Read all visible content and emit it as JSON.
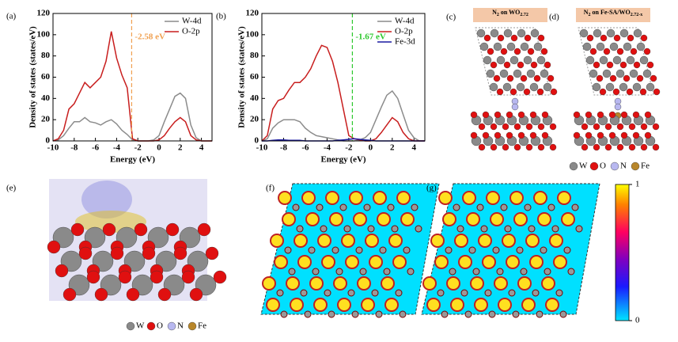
{
  "chart_data": [
    {
      "type": "line",
      "panel_label": "(a)",
      "xlabel": "Energy (eV)",
      "ylabel": "Density of states (states/eV)",
      "x": [
        -10,
        -9.5,
        -9,
        -8.5,
        -8,
        -7.5,
        -7,
        -6.5,
        -6,
        -5.5,
        -5,
        -4.5,
        -4,
        -3.5,
        -3,
        -2.5,
        -2,
        -1.5,
        -1,
        -0.5,
        0,
        0.5,
        1,
        1.5,
        2,
        2.5,
        3,
        3.5,
        4,
        4.5,
        5
      ],
      "series": [
        {
          "name": "W-4d",
          "color": "#8c8c8c",
          "values": [
            0,
            1,
            5,
            12,
            18,
            18,
            22,
            18,
            17,
            15,
            18,
            20,
            16,
            10,
            6,
            1,
            0,
            0,
            0,
            1,
            5,
            18,
            30,
            42,
            45,
            40,
            15,
            3,
            0,
            0,
            0
          ]
        },
        {
          "name": "O-2p",
          "color": "#c81e1e",
          "values": [
            0,
            2,
            10,
            30,
            35,
            45,
            55,
            50,
            55,
            60,
            75,
            103,
            78,
            62,
            50,
            2,
            0,
            0,
            0,
            0,
            1,
            5,
            12,
            18,
            22,
            18,
            5,
            1,
            0,
            0,
            0
          ]
        }
      ],
      "xlim": [
        -10,
        5
      ],
      "xticks": [
        -10,
        -8,
        -6,
        -4,
        -2,
        0,
        2,
        4
      ],
      "ylim": [
        0,
        120
      ],
      "yticks": [
        0,
        20,
        40,
        60,
        80,
        100,
        120
      ],
      "annotation": {
        "text": "-2.58 eV",
        "x": -2.58,
        "color": "#f0a050"
      }
    },
    {
      "type": "line",
      "panel_label": "(b)",
      "xlabel": "Energy (eV)",
      "ylabel": "Density of states (states/eV)",
      "x": [
        -10,
        -9.5,
        -9,
        -8.5,
        -8,
        -7.5,
        -7,
        -6.5,
        -6,
        -5.5,
        -5,
        -4.5,
        -4,
        -3.5,
        -3,
        -2.5,
        -2,
        -1.5,
        -1,
        -0.5,
        0,
        0.5,
        1,
        1.5,
        2,
        2.5,
        3,
        3.5,
        4,
        4.5,
        5
      ],
      "series": [
        {
          "name": "W-4d",
          "color": "#8c8c8c",
          "values": [
            0,
            2,
            12,
            17,
            20,
            20,
            20,
            18,
            12,
            8,
            5,
            4,
            3,
            2,
            1,
            0,
            0,
            0,
            1,
            3,
            8,
            20,
            32,
            43,
            47,
            40,
            25,
            10,
            3,
            0,
            0
          ]
        },
        {
          "name": "O-2p",
          "color": "#c81e1e",
          "values": [
            0,
            5,
            30,
            38,
            40,
            48,
            55,
            55,
            60,
            68,
            80,
            90,
            88,
            75,
            55,
            30,
            5,
            2,
            1,
            0,
            0,
            2,
            8,
            15,
            22,
            18,
            8,
            2,
            0,
            0,
            0
          ]
        },
        {
          "name": "Fe-3d",
          "color": "#1a1aa0",
          "values": [
            0,
            0,
            0.5,
            1,
            1,
            0.5,
            0.5,
            0.5,
            0,
            0,
            0,
            0,
            0,
            0,
            0.5,
            1,
            1.5,
            2,
            1.5,
            1,
            0.5,
            0,
            0,
            0,
            0,
            0,
            0,
            0,
            0,
            0,
            0
          ]
        }
      ],
      "xlim": [
        -10,
        5
      ],
      "xticks": [
        -10,
        -8,
        -6,
        -4,
        -2,
        0,
        2,
        4
      ],
      "ylim": [
        0,
        120
      ],
      "yticks": [
        0,
        20,
        40,
        60,
        80,
        100,
        120
      ],
      "annotation": {
        "text": "-1.67 eV",
        "x": -1.67,
        "color": "#2ec82e"
      }
    }
  ],
  "panels": {
    "c": {
      "label": "(c)",
      "title_parts": [
        "N",
        "2",
        " on WO",
        "2.72"
      ]
    },
    "d": {
      "label": "(d)",
      "title_parts": [
        "N",
        "2",
        " on Fe-SA/WO",
        "2.72-x"
      ]
    },
    "e": {
      "label": "(e)"
    },
    "f": {
      "label": "(f)"
    },
    "g": {
      "label": "(g)"
    }
  },
  "atom_legend": [
    {
      "label": "W",
      "color": "#8a8a8a"
    },
    {
      "label": "O",
      "color": "#e01010"
    },
    {
      "label": "N",
      "color": "#b8b8f0"
    },
    {
      "label": "Fe",
      "color": "#b8862a"
    }
  ],
  "colorbar": {
    "ticks": [
      0,
      1
    ],
    "lim": [
      0,
      1
    ]
  }
}
